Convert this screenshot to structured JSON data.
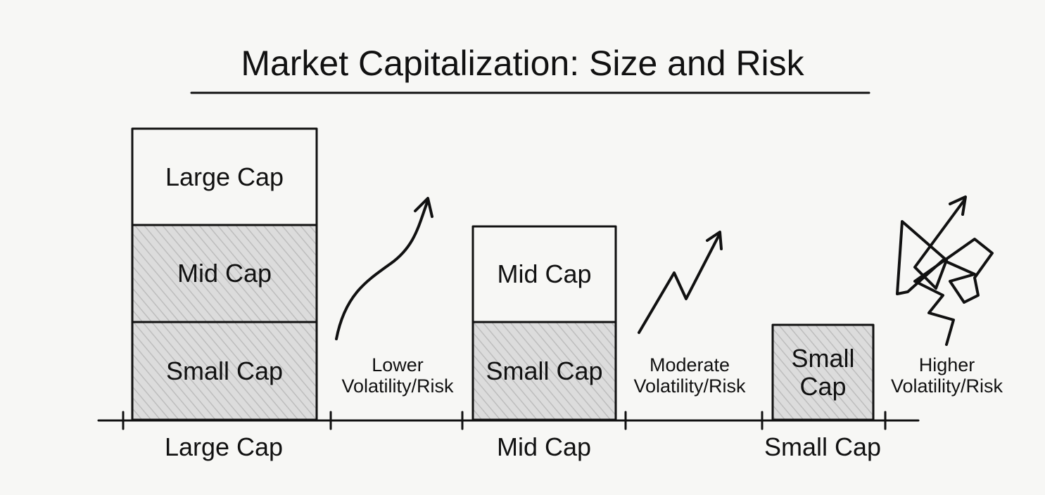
{
  "title": "Market Capitalization: Size and Risk",
  "columns": [
    {
      "label": "Large Cap",
      "segments": [
        "Large Cap",
        "Mid Cap",
        "Small Cap"
      ],
      "risk": "Lower Volatility/Risk"
    },
    {
      "label": "Mid Cap",
      "segments": [
        "Mid Cap",
        "Small Cap"
      ],
      "risk": "Moderate Volatility/Risk"
    },
    {
      "label": "Small Cap",
      "segments": [
        "Small Cap"
      ],
      "risk": "Higher Volatility/Risk"
    }
  ]
}
